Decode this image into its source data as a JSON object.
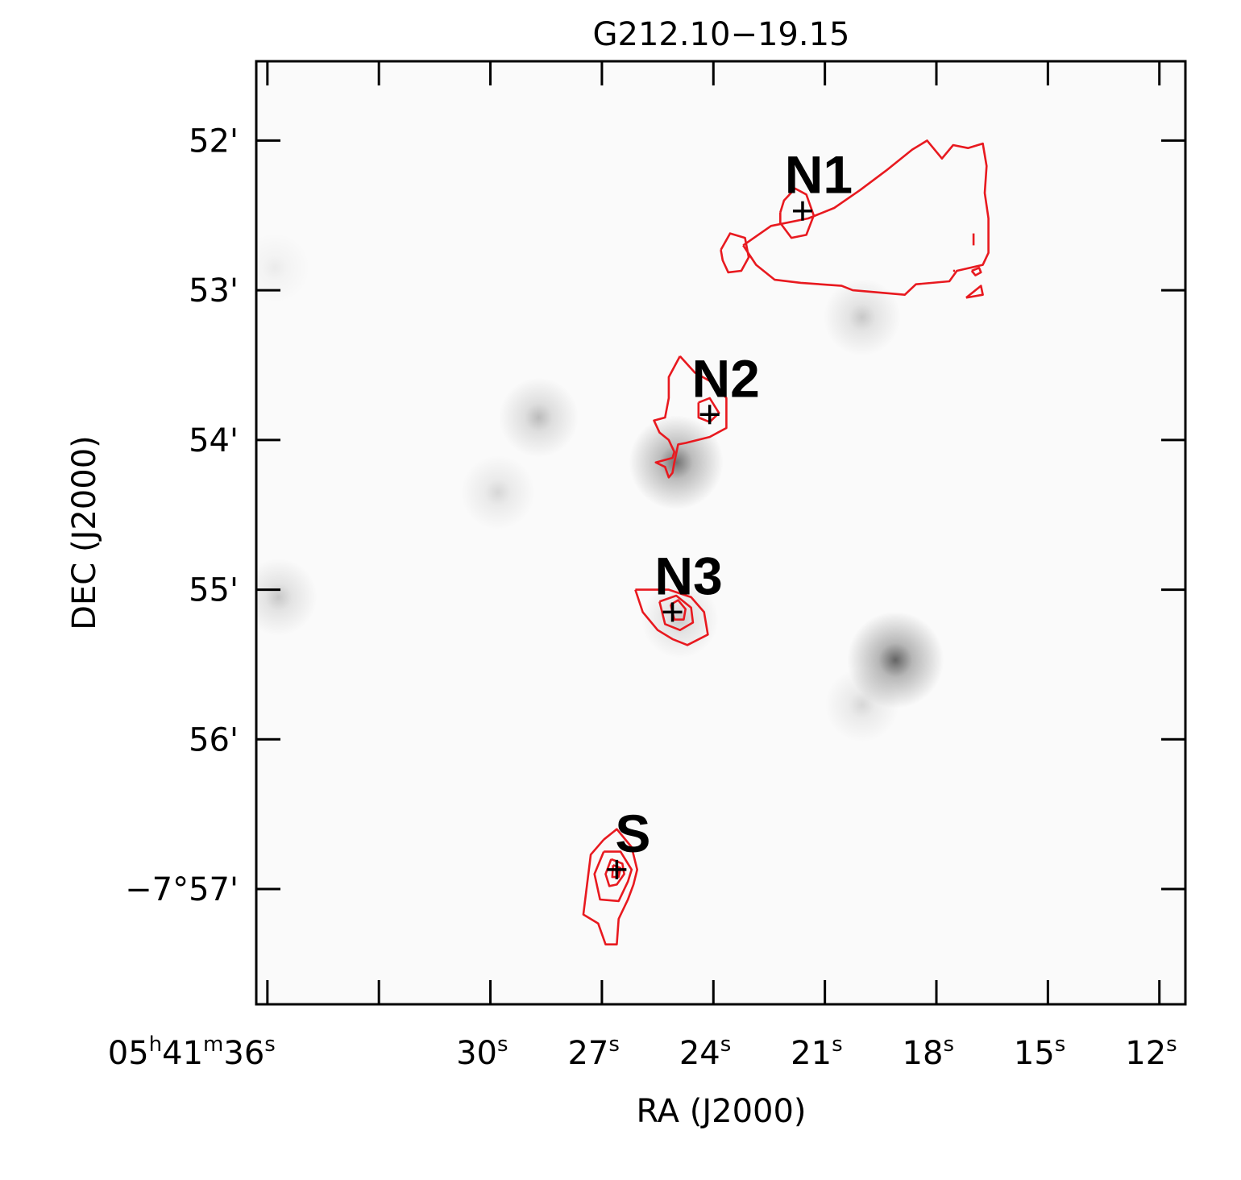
{
  "chart_data": {
    "type": "contour",
    "title": "G212.10−19.15",
    "xlabel": "RA (J2000)",
    "ylabel": "DEC (J2000)",
    "x_unit": "RA seconds (05h41m)",
    "y_unit": "DEC arcmin offset below -7° (52 = -7°52')",
    "xlim": [
      36.3,
      11.3
    ],
    "ylim": [
      57.77,
      51.47
    ],
    "ra_ticks": [
      {
        "value": 36,
        "label": "05",
        "sup_h": "h",
        "label2": "41",
        "sup_m": "m",
        "label3": "36",
        "sup_s": "s"
      },
      {
        "value": 30,
        "label": "30",
        "sup_s": "s"
      },
      {
        "value": 27,
        "label": "27",
        "sup_s": "s"
      },
      {
        "value": 24,
        "label": "24",
        "sup_s": "s"
      },
      {
        "value": 21,
        "label": "21",
        "sup_s": "s"
      },
      {
        "value": 18,
        "label": "18",
        "sup_s": "s"
      },
      {
        "value": 15,
        "label": "15",
        "sup_s": "s"
      },
      {
        "value": 12,
        "label": "12",
        "sup_s": "s"
      }
    ],
    "ra_minor_ticks": [
      33
    ],
    "dec_ticks": [
      {
        "value": 52,
        "label": "52'"
      },
      {
        "value": 53,
        "label": "53'"
      },
      {
        "value": 54,
        "label": "54'"
      },
      {
        "value": 55,
        "label": "55'"
      },
      {
        "value": 56,
        "label": "56'"
      },
      {
        "value": 57,
        "label": "−7°57'"
      }
    ],
    "sources": [
      {
        "name": "N1",
        "ra": 21.6,
        "dec": 52.47
      },
      {
        "name": "N2",
        "ra": 24.1,
        "dec": 53.83
      },
      {
        "name": "N3",
        "ra": 25.1,
        "dec": 55.15
      },
      {
        "name": "S",
        "ra": 26.6,
        "dec": 56.87
      }
    ],
    "grayscale_peaks": [
      {
        "ra": 25.0,
        "dec": 54.15,
        "strength": 0.55
      },
      {
        "ra": 19.1,
        "dec": 55.47,
        "strength": 0.6
      },
      {
        "ra": 28.7,
        "dec": 53.85,
        "strength": 0.25
      },
      {
        "ra": 35.7,
        "dec": 55.05,
        "strength": 0.2
      },
      {
        "ra": 20.0,
        "dec": 53.18,
        "strength": 0.2
      },
      {
        "ra": 29.8,
        "dec": 54.35,
        "strength": 0.14
      },
      {
        "ra": 24.9,
        "dec": 55.2,
        "strength": 0.2
      },
      {
        "ra": 20.0,
        "dec": 55.77,
        "strength": 0.14
      },
      {
        "ra": 35.8,
        "dec": 52.85,
        "strength": 0.06
      }
    ],
    "contours": [
      {
        "region": "N1-outer",
        "points": [
          [
            27.35,
            52.7
          ],
          [
            26.6,
            52.57
          ],
          [
            25.6,
            52.52
          ],
          [
            24.9,
            52.45
          ],
          [
            24.2,
            52.33
          ],
          [
            23.5,
            52.2
          ],
          [
            22.8,
            52.06
          ],
          [
            22.4,
            52.0
          ],
          [
            22.0,
            52.12
          ],
          [
            21.7,
            52.03
          ],
          [
            21.3,
            52.05
          ],
          [
            20.9,
            52.02
          ],
          [
            20.8,
            52.17
          ],
          [
            20.85,
            52.35
          ],
          [
            20.75,
            52.52
          ],
          [
            20.75,
            52.75
          ],
          [
            20.9,
            52.83
          ],
          [
            21.6,
            52.87
          ],
          [
            21.8,
            52.94
          ],
          [
            22.7,
            52.96
          ],
          [
            23.0,
            53.03
          ],
          [
            24.4,
            53.0
          ],
          [
            24.7,
            52.97
          ],
          [
            25.8,
            52.95
          ],
          [
            26.5,
            52.93
          ],
          [
            27.0,
            52.83
          ],
          [
            27.35,
            52.7
          ]
        ],
        "ra_offset": 4.15
      },
      {
        "region": "N1-inner",
        "points": [
          [
            22.2,
            52.48
          ],
          [
            22.1,
            52.4
          ],
          [
            21.8,
            52.32
          ],
          [
            21.5,
            52.36
          ],
          [
            21.3,
            52.5
          ],
          [
            21.5,
            52.63
          ],
          [
            21.9,
            52.65
          ],
          [
            22.2,
            52.55
          ],
          [
            22.2,
            52.48
          ]
        ]
      },
      {
        "region": "N1-secondary",
        "points": [
          [
            23.8,
            52.73
          ],
          [
            23.55,
            52.62
          ],
          [
            23.15,
            52.65
          ],
          [
            23.05,
            52.78
          ],
          [
            23.25,
            52.87
          ],
          [
            23.6,
            52.88
          ],
          [
            23.75,
            52.8
          ],
          [
            23.8,
            52.73
          ]
        ]
      },
      {
        "region": "N1-east-bar",
        "points": [
          [
            17.0,
            52.62
          ],
          [
            17.0,
            52.7
          ]
        ]
      },
      {
        "region": "N1-east-dot",
        "points": [
          [
            17.55,
            52.87
          ],
          [
            17.5,
            52.87
          ]
        ]
      },
      {
        "region": "N1-east-ring1",
        "points": [
          [
            17.05,
            52.87
          ],
          [
            16.85,
            52.85
          ],
          [
            16.8,
            52.88
          ],
          [
            16.95,
            52.9
          ],
          [
            17.05,
            52.87
          ]
        ]
      },
      {
        "region": "N1-east-ring2",
        "points": [
          [
            17.2,
            53.05
          ],
          [
            16.8,
            52.97
          ],
          [
            16.75,
            53.03
          ],
          [
            17.2,
            53.05
          ]
        ]
      },
      {
        "region": "N2-outer",
        "points": [
          [
            24.9,
            53.44
          ],
          [
            25.2,
            53.58
          ],
          [
            25.2,
            53.72
          ],
          [
            25.3,
            53.85
          ],
          [
            25.6,
            53.87
          ],
          [
            25.45,
            53.95
          ],
          [
            25.2,
            54.0
          ],
          [
            25.05,
            54.08
          ],
          [
            25.1,
            54.12
          ],
          [
            25.55,
            54.15
          ],
          [
            25.3,
            54.18
          ],
          [
            25.2,
            54.25
          ],
          [
            25.1,
            54.22
          ],
          [
            25.05,
            54.15
          ],
          [
            24.95,
            54.03
          ],
          [
            24.75,
            54.02
          ],
          [
            24.1,
            53.98
          ],
          [
            23.65,
            53.92
          ],
          [
            23.65,
            53.72
          ],
          [
            24.0,
            53.62
          ],
          [
            24.5,
            53.55
          ],
          [
            24.9,
            53.44
          ]
        ]
      },
      {
        "region": "N2-inner",
        "points": [
          [
            24.4,
            53.75
          ],
          [
            24.1,
            53.72
          ],
          [
            23.85,
            53.82
          ],
          [
            24.1,
            53.88
          ],
          [
            24.4,
            53.85
          ],
          [
            24.4,
            53.75
          ]
        ]
      },
      {
        "region": "N3-outer",
        "points": [
          [
            26.1,
            55.0
          ],
          [
            25.7,
            55.0
          ],
          [
            25.2,
            55.0
          ],
          [
            24.6,
            55.05
          ],
          [
            24.25,
            55.15
          ],
          [
            24.15,
            55.3
          ],
          [
            24.7,
            55.37
          ],
          [
            25.1,
            55.33
          ],
          [
            25.5,
            55.27
          ],
          [
            25.9,
            55.15
          ],
          [
            26.1,
            55.0
          ]
        ]
      },
      {
        "region": "N3-mid",
        "points": [
          [
            25.45,
            55.08
          ],
          [
            25.0,
            55.04
          ],
          [
            24.6,
            55.12
          ],
          [
            24.55,
            55.22
          ],
          [
            24.9,
            55.27
          ],
          [
            25.3,
            55.23
          ],
          [
            25.45,
            55.08
          ]
        ]
      },
      {
        "region": "N3-inner",
        "points": [
          [
            25.15,
            55.1
          ],
          [
            24.95,
            55.07
          ],
          [
            24.75,
            55.13
          ],
          [
            24.8,
            55.2
          ],
          [
            25.05,
            55.2
          ],
          [
            25.15,
            55.1
          ]
        ]
      },
      {
        "region": "S-outer",
        "points": [
          [
            26.95,
            56.67
          ],
          [
            26.6,
            56.6
          ],
          [
            26.2,
            56.72
          ],
          [
            26.05,
            56.87
          ],
          [
            26.15,
            56.97
          ],
          [
            26.3,
            57.07
          ],
          [
            26.55,
            57.2
          ],
          [
            26.6,
            57.37
          ],
          [
            26.9,
            57.37
          ],
          [
            27.1,
            57.23
          ],
          [
            27.5,
            57.17
          ],
          [
            27.4,
            56.97
          ],
          [
            27.3,
            56.77
          ],
          [
            26.95,
            56.67
          ]
        ]
      },
      {
        "region": "S-2",
        "points": [
          [
            26.95,
            56.75
          ],
          [
            26.5,
            56.75
          ],
          [
            26.2,
            56.87
          ],
          [
            26.3,
            56.95
          ],
          [
            26.55,
            57.08
          ],
          [
            27.05,
            57.07
          ],
          [
            27.2,
            56.9
          ],
          [
            26.95,
            56.75
          ]
        ]
      },
      {
        "region": "S-3",
        "points": [
          [
            26.75,
            56.8
          ],
          [
            26.45,
            56.83
          ],
          [
            26.4,
            56.9
          ],
          [
            26.6,
            56.97
          ],
          [
            26.8,
            56.98
          ],
          [
            26.9,
            56.9
          ],
          [
            26.75,
            56.8
          ]
        ]
      },
      {
        "region": "S-4",
        "points": [
          [
            26.7,
            56.84
          ],
          [
            26.5,
            56.86
          ],
          [
            26.55,
            56.92
          ],
          [
            26.72,
            56.92
          ],
          [
            26.7,
            56.84
          ]
        ]
      },
      {
        "region": "S-5",
        "points": [
          [
            26.63,
            56.86
          ],
          [
            26.55,
            56.88
          ],
          [
            26.6,
            56.9
          ],
          [
            26.63,
            56.86
          ]
        ]
      }
    ],
    "colors": {
      "contour": "#e8191f",
      "marker": "#000000",
      "frame": "#000000",
      "background": "#ffffff"
    }
  }
}
